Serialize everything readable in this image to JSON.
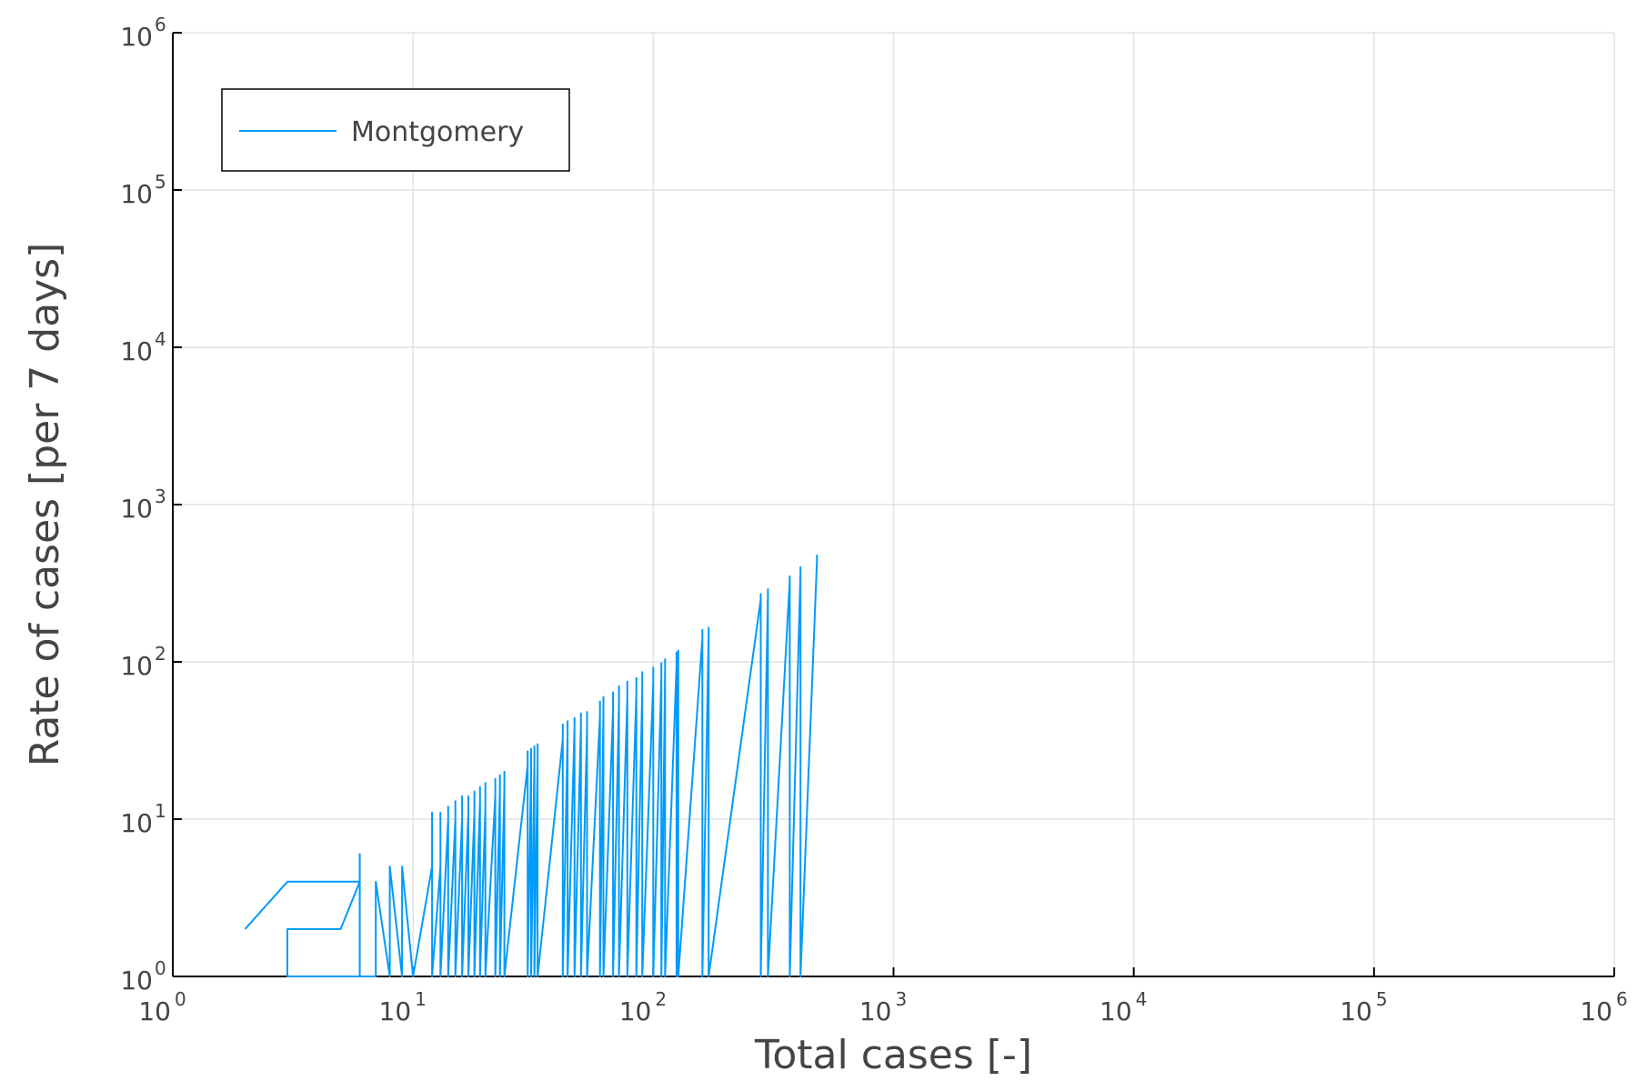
{
  "chart_data": {
    "type": "line",
    "xlabel": "Total cases [-]",
    "ylabel": "Rate of cases [per 7 days]",
    "xscale": "log",
    "yscale": "log",
    "xlim": [
      1,
      1000000
    ],
    "ylim": [
      1,
      1000000
    ],
    "x_ticks": [
      {
        "base": "10",
        "exp": "0"
      },
      {
        "base": "10",
        "exp": "1"
      },
      {
        "base": "10",
        "exp": "2"
      },
      {
        "base": "10",
        "exp": "3"
      },
      {
        "base": "10",
        "exp": "4"
      },
      {
        "base": "10",
        "exp": "5"
      },
      {
        "base": "10",
        "exp": "6"
      }
    ],
    "y_ticks": [
      {
        "base": "10",
        "exp": "0"
      },
      {
        "base": "10",
        "exp": "1"
      },
      {
        "base": "10",
        "exp": "2"
      },
      {
        "base": "10",
        "exp": "3"
      },
      {
        "base": "10",
        "exp": "4"
      },
      {
        "base": "10",
        "exp": "5"
      },
      {
        "base": "10",
        "exp": "6"
      }
    ],
    "grid": true,
    "legend_position": "top-left",
    "series": [
      {
        "name": "Montgomery",
        "color": "#009af9",
        "x": [
          2,
          3,
          4,
          6,
          6,
          6,
          6,
          3,
          3,
          4,
          5,
          5,
          6,
          6,
          7,
          7,
          7,
          8,
          8,
          8,
          9,
          9,
          9,
          10,
          12,
          12,
          12,
          13,
          13,
          13,
          14,
          14,
          14,
          15,
          15,
          15,
          16,
          16,
          16,
          17,
          17,
          17,
          18,
          18,
          18,
          19,
          19,
          19,
          20,
          20,
          20,
          22,
          22,
          22,
          23,
          23,
          23,
          24,
          24,
          24,
          30,
          30,
          30,
          31,
          31,
          31,
          32,
          32,
          32,
          33,
          33,
          33,
          42,
          42,
          42,
          44,
          44,
          44,
          47,
          47,
          47,
          50,
          50,
          50,
          53,
          53,
          53,
          60,
          60,
          60,
          62,
          62,
          62,
          68,
          68,
          68,
          72,
          72,
          72,
          78,
          78,
          78,
          85,
          85,
          85,
          90,
          90,
          90,
          100,
          100,
          100,
          108,
          108,
          108,
          112,
          112,
          112,
          125,
          125,
          125,
          127,
          127,
          127,
          160,
          160,
          160,
          170,
          170,
          170,
          280,
          280,
          280,
          300,
          300,
          300,
          370,
          370,
          370,
          410,
          410,
          410,
          480,
          480
        ],
        "y": [
          2,
          4,
          4,
          4,
          5,
          6,
          1,
          1,
          2,
          2,
          2,
          2,
          4,
          1,
          1,
          3,
          4,
          1,
          4,
          5,
          1,
          5,
          5,
          1,
          5,
          11,
          1,
          5,
          11,
          1,
          10,
          12,
          1,
          10,
          13,
          1,
          10,
          14,
          1,
          11,
          14,
          1,
          11,
          15,
          1,
          13,
          16,
          1,
          12,
          17,
          1,
          14,
          18,
          1,
          15,
          19,
          1,
          16,
          20,
          1,
          22,
          27,
          1,
          21,
          28,
          1,
          23,
          29,
          1,
          24,
          30,
          1,
          32,
          40,
          1,
          34,
          42,
          1,
          38,
          44,
          1,
          40,
          47,
          1,
          38,
          48,
          1,
          45,
          56,
          1,
          48,
          60,
          1,
          50,
          64,
          1,
          54,
          70,
          1,
          60,
          75,
          1,
          63,
          79,
          1,
          66,
          86,
          1,
          74,
          92,
          1,
          80,
          98,
          1,
          85,
          104,
          1,
          95,
          115,
          1,
          110,
          118,
          1,
          140,
          160,
          1,
          150,
          165,
          1,
          250,
          270,
          1,
          270,
          290,
          1,
          330,
          350,
          1,
          380,
          400,
          1,
          440,
          480
        ]
      }
    ]
  }
}
